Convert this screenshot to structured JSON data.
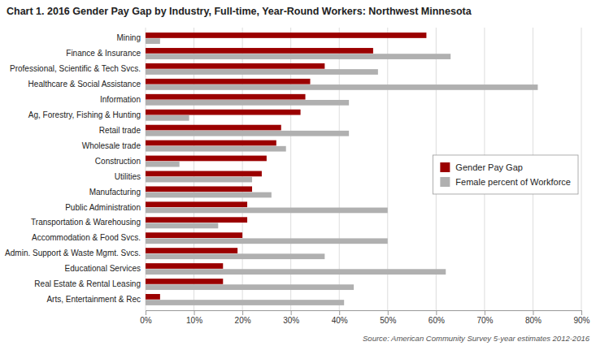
{
  "chart_data": {
    "type": "bar",
    "orientation": "horizontal",
    "title": "Chart 1. 2016 Gender Pay Gap by Industry, Full-time, Year-Round Workers: Northwest Minnesota",
    "annotations": [
      "Source: American Community Survey 5-year estimates 2012-2016"
    ],
    "categories": [
      "Mining",
      "Finance & Insurance",
      "Professional, Scientific & Tech Svcs.",
      "Healthcare & Social Assistance",
      "Information",
      "Ag, Forestry, Fishing & Hunting",
      "Retail trade",
      "Wholesale trade",
      "Construction",
      "Utilities",
      "Manufacturing",
      "Public Administration",
      "Transportation & Warehousing",
      "Accommodation & Food Svcs.",
      "Admin. Support & Waste Mgmt. Svcs.",
      "Educational Services",
      "Real Estate & Rental Leasing",
      "Arts, Entertainment & Rec"
    ],
    "series": [
      {
        "name": "Gender Pay Gap",
        "color": "#9B0000",
        "values": [
          58,
          47,
          37,
          34,
          33,
          32,
          28,
          27,
          25,
          24,
          22,
          21,
          21,
          20,
          19,
          16,
          16,
          3
        ]
      },
      {
        "name": "Female percent of Workforce",
        "color": "#B0B0B0",
        "values": [
          3,
          63,
          48,
          81,
          42,
          9,
          42,
          29,
          7,
          22,
          26,
          50,
          15,
          50,
          37,
          62,
          43,
          41
        ]
      }
    ],
    "xlim": [
      0,
      90
    ],
    "xticks": [
      {
        "value": 0,
        "label": "0%"
      },
      {
        "value": 10,
        "label": "10%"
      },
      {
        "value": 20,
        "label": "20%"
      },
      {
        "value": 30,
        "label": "30%"
      },
      {
        "value": 40,
        "label": "40%"
      },
      {
        "value": 50,
        "label": "50%"
      },
      {
        "value": 60,
        "label": "60%"
      },
      {
        "value": 70,
        "label": "70%"
      },
      {
        "value": 80,
        "label": "80%"
      },
      {
        "value": 90,
        "label": "90%"
      }
    ],
    "grid": true,
    "legend": "right"
  }
}
